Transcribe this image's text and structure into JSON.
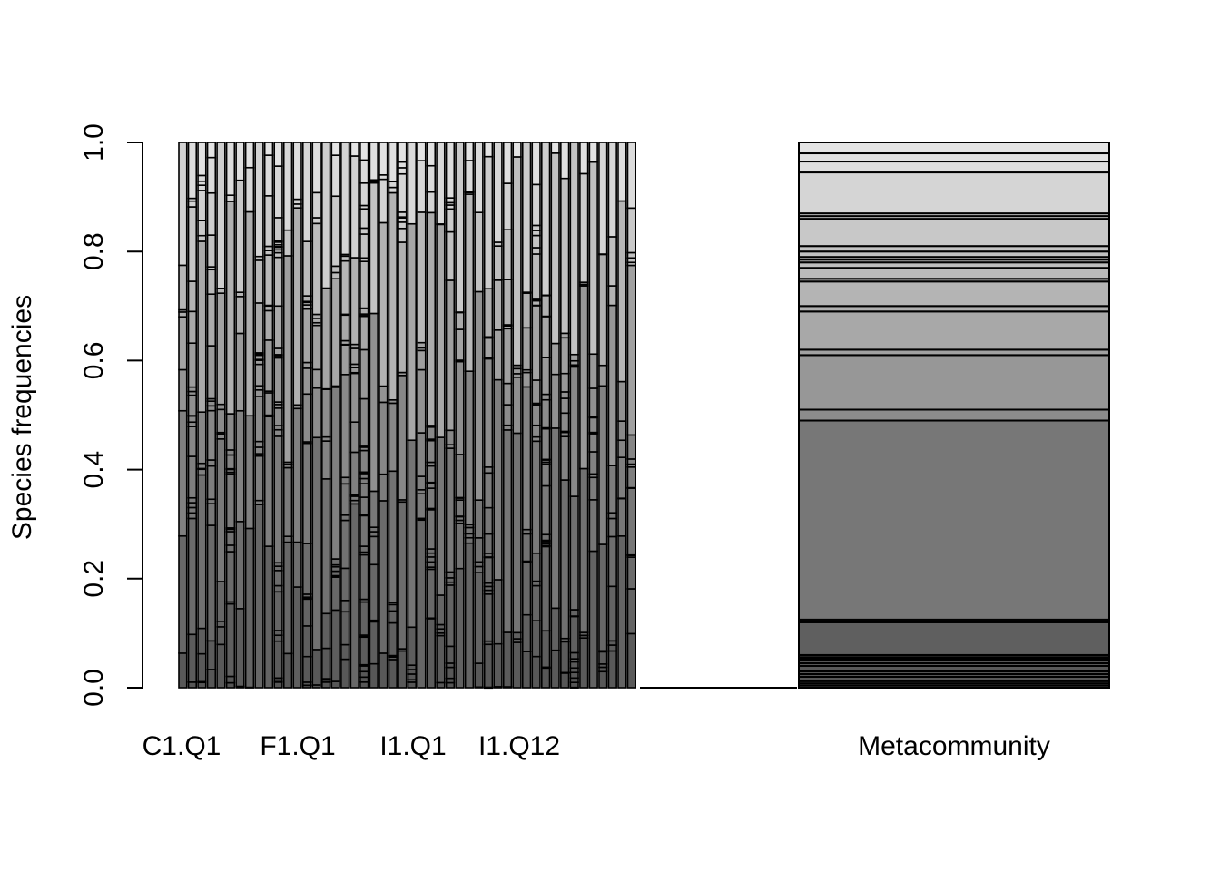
{
  "chart_data": {
    "type": "bar",
    "stacked": true,
    "title": "",
    "xlabel": "",
    "ylabel": "Species frequencies",
    "ylim": [
      0,
      1
    ],
    "yticks": [
      "0.0",
      "0.2",
      "0.4",
      "0.6",
      "0.8",
      "1.0"
    ],
    "x_tick_labels": [
      "C1.Q1",
      "F1.Q1",
      "I1.Q1",
      "I1.Q12",
      "Metacommunity"
    ],
    "community_count": 48,
    "metacommunity": {
      "label": "Metacommunity",
      "cumulative_bounds": [
        0,
        0.004,
        0.008,
        0.012,
        0.02,
        0.025,
        0.03,
        0.04,
        0.045,
        0.05,
        0.053,
        0.056,
        0.06,
        0.12,
        0.125,
        0.49,
        0.51,
        0.61,
        0.62,
        0.69,
        0.7,
        0.745,
        0.75,
        0.77,
        0.78,
        0.785,
        0.79,
        0.8,
        0.81,
        0.86,
        0.865,
        0.87,
        0.945,
        0.965,
        0.98,
        1.0
      ]
    },
    "shading": {
      "dark": "#555555",
      "mid": "#8c8c8c",
      "light": "#e6e6e6"
    }
  }
}
